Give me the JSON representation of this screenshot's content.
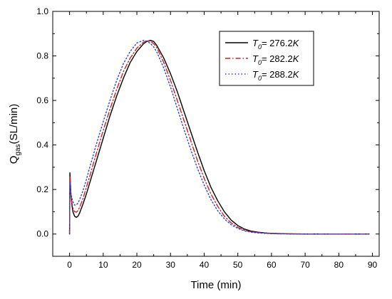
{
  "chart_data": {
    "type": "line",
    "xlabel": "Time (min)",
    "ylabel_main": "Q",
    "ylabel_sub": "gas",
    "ylabel_rest": "(SL/min)",
    "xlim": [
      -5,
      92
    ],
    "ylim": [
      -0.1,
      1.0
    ],
    "xticks": [
      0,
      10,
      20,
      30,
      40,
      50,
      60,
      70,
      80,
      90
    ],
    "yticks": [
      0.0,
      0.2,
      0.4,
      0.6,
      0.8,
      1.0
    ],
    "xtick_labels": [
      "0",
      "10",
      "20",
      "30",
      "40",
      "50",
      "60",
      "70",
      "80",
      "90"
    ],
    "ytick_labels": [
      "0.0",
      "0.2",
      "0.4",
      "0.6",
      "0.8",
      "1.0"
    ],
    "grid": false,
    "legend_position": "top-right",
    "series": [
      {
        "legend_var": "T",
        "legend_sub": "0",
        "legend_value": "= 276.2",
        "legend_unit": "K",
        "color": "#000000",
        "style": "solid",
        "x": [
          0,
          0.1,
          0.2,
          0.4,
          0.7,
          1.0,
          1.5,
          2,
          2.5,
          3,
          4,
          5,
          6,
          8,
          10,
          12,
          14,
          16,
          18,
          20,
          22,
          23,
          24,
          25,
          26,
          28,
          30,
          32,
          34,
          36,
          38,
          40,
          42,
          44,
          46,
          48,
          50,
          52,
          54,
          56,
          58,
          60,
          62,
          65,
          70,
          80,
          89
        ],
        "y": [
          0.0,
          0.275,
          0.24,
          0.18,
          0.13,
          0.1,
          0.08,
          0.075,
          0.08,
          0.095,
          0.135,
          0.18,
          0.23,
          0.33,
          0.43,
          0.53,
          0.62,
          0.7,
          0.77,
          0.82,
          0.855,
          0.865,
          0.87,
          0.865,
          0.845,
          0.79,
          0.72,
          0.64,
          0.55,
          0.46,
          0.37,
          0.285,
          0.21,
          0.15,
          0.1,
          0.063,
          0.038,
          0.022,
          0.013,
          0.008,
          0.005,
          0.003,
          0.002,
          0.001,
          0.0,
          0.0,
          0.0
        ]
      },
      {
        "legend_var": "T",
        "legend_sub": "0",
        "legend_value": "= 282.2",
        "legend_unit": "K",
        "color": "#d62020",
        "style": "dashdot",
        "x": [
          0,
          0.1,
          0.2,
          0.4,
          0.7,
          1.0,
          1.5,
          2,
          2.5,
          3,
          4,
          5,
          6,
          8,
          10,
          12,
          14,
          16,
          18,
          20,
          22,
          23,
          24,
          25,
          26,
          28,
          30,
          32,
          34,
          36,
          38,
          40,
          42,
          44,
          46,
          48,
          50,
          52,
          54,
          56,
          58,
          60,
          62,
          65,
          70,
          80,
          89
        ],
        "y": [
          0.0,
          0.26,
          0.23,
          0.18,
          0.14,
          0.115,
          0.1,
          0.098,
          0.105,
          0.12,
          0.16,
          0.21,
          0.26,
          0.365,
          0.465,
          0.56,
          0.65,
          0.73,
          0.79,
          0.835,
          0.862,
          0.868,
          0.866,
          0.855,
          0.835,
          0.77,
          0.69,
          0.6,
          0.51,
          0.42,
          0.33,
          0.25,
          0.18,
          0.125,
          0.08,
          0.05,
          0.03,
          0.017,
          0.01,
          0.006,
          0.004,
          0.002,
          0.001,
          0.001,
          0.0,
          0.0,
          0.0
        ]
      },
      {
        "legend_var": "T",
        "legend_sub": "0",
        "legend_value": "= 288.2",
        "legend_unit": "K",
        "color": "#2f3fe0",
        "style": "dotted",
        "x": [
          0,
          0.1,
          0.2,
          0.4,
          0.7,
          1.0,
          1.5,
          2,
          2.5,
          3,
          4,
          5,
          6,
          8,
          10,
          12,
          14,
          16,
          18,
          20,
          22,
          23,
          24,
          25,
          26,
          28,
          30,
          32,
          34,
          36,
          38,
          40,
          42,
          44,
          46,
          48,
          50,
          52,
          54,
          56,
          58,
          60,
          62,
          65,
          70,
          80,
          89
        ],
        "y": [
          0.0,
          0.23,
          0.21,
          0.18,
          0.16,
          0.145,
          0.13,
          0.13,
          0.14,
          0.155,
          0.195,
          0.245,
          0.3,
          0.405,
          0.505,
          0.6,
          0.69,
          0.765,
          0.82,
          0.858,
          0.87,
          0.866,
          0.856,
          0.84,
          0.815,
          0.745,
          0.66,
          0.565,
          0.47,
          0.38,
          0.295,
          0.22,
          0.155,
          0.105,
          0.068,
          0.042,
          0.025,
          0.014,
          0.008,
          0.005,
          0.003,
          0.002,
          0.001,
          0.0,
          0.0,
          0.0,
          0.0
        ]
      }
    ]
  }
}
